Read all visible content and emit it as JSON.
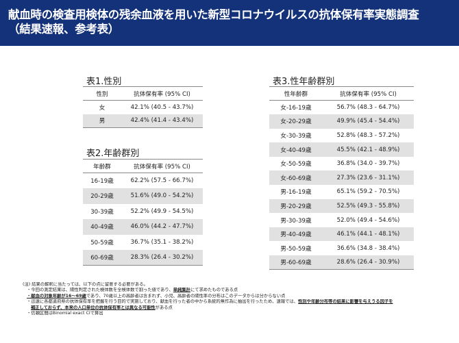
{
  "header": {
    "line1": "献血時の検査用検体の残余血液を用いた新型コロナウイルスの抗体保有率実態調査",
    "line2": "（結果速報、参考表）"
  },
  "table1": {
    "title": "表1.性別",
    "headers": [
      "性別",
      "抗体保有率 (95% CI)"
    ],
    "rows": [
      [
        "女",
        "42.1% (40.5 - 43.7%)"
      ],
      [
        "男",
        "42.4% (41.4 - 43.4%)"
      ]
    ]
  },
  "table2": {
    "title": "表2.年齢群別",
    "headers": [
      "年齢群",
      "抗体保有率 (95% CI)"
    ],
    "rows": [
      [
        "16-19歳",
        "62.2% (57.5 - 66.7%)"
      ],
      [
        "20-29歳",
        "51.6% (49.0 - 54.2%)"
      ],
      [
        "30-39歳",
        "52.2% (49.9 - 54.5%)"
      ],
      [
        "40-49歳",
        "46.0% (44.2 - 47.7%)"
      ],
      [
        "50-59歳",
        "36.7% (35.1 - 38.2%)"
      ],
      [
        "60-69歳",
        "28.3% (26.4 - 30.2%)"
      ]
    ]
  },
  "table3": {
    "title": "表3.性年齢群別",
    "headers": [
      "性年齢群",
      "抗体保有率 (95% CI)"
    ],
    "rows": [
      [
        "女-16-19歳",
        "56.7% (48.3 - 64.7%)"
      ],
      [
        "女-20-29歳",
        "49.9% (45.4 - 54.4%)"
      ],
      [
        "女-30-39歳",
        "52.8% (48.3 - 57.2%)"
      ],
      [
        "女-40-49歳",
        "45.5% (42.1 - 48.9%)"
      ],
      [
        "女-50-59歳",
        "36.8% (34.0 - 39.7%)"
      ],
      [
        "女-60-69歳",
        "27.3% (23.6 - 31.1%)"
      ],
      [
        "男-16-19歳",
        "65.1% (59.2 - 70.5%)"
      ],
      [
        "男-20-29歳",
        "52.5% (49.3 - 55.8%)"
      ],
      [
        "男-30-39歳",
        "52.0% (49.4 - 54.6%)"
      ],
      [
        "男-40-49歳",
        "46.1% (44.1 - 48.1%)"
      ],
      [
        "男-50-59歳",
        "36.6% (34.8 - 38.4%)"
      ],
      [
        "男-60-69歳",
        "28.6% (26.4 - 30.9%)"
      ]
    ]
  },
  "notes": {
    "intro": "(注) 結果の解釈に当たっては、以下の点に留意する必要がある。",
    "n1_pre": "・今回の測定結果は、陽性判定された検体数を全検体数で割った値であり、",
    "n1_bold": "単純集計",
    "n1_post": "にて求めたものである点",
    "n2_bold": "・献血の対象年齢が16～69歳",
    "n2_post": "であり、70歳以上の高齢者は含まれず、小児、高齢者の陽性率の分布はこのデータからは分からない点",
    "n3_pre": "・迅速に各都道府県の抗体保有率を把握を行う目的で実施しており、献血を行った者の中から系統的無作為に抽出を行ったため、速報では、",
    "n3_bold": "性別や年齢分布等の結果に影響を与えうる因子を",
    "n4_bold1": "補正しておらず、本来の人口単位の抗体保有率とは異なる可能性",
    "n4_post": "がある点",
    "n5": "・信頼区間はBinomial exact CIで算出"
  }
}
